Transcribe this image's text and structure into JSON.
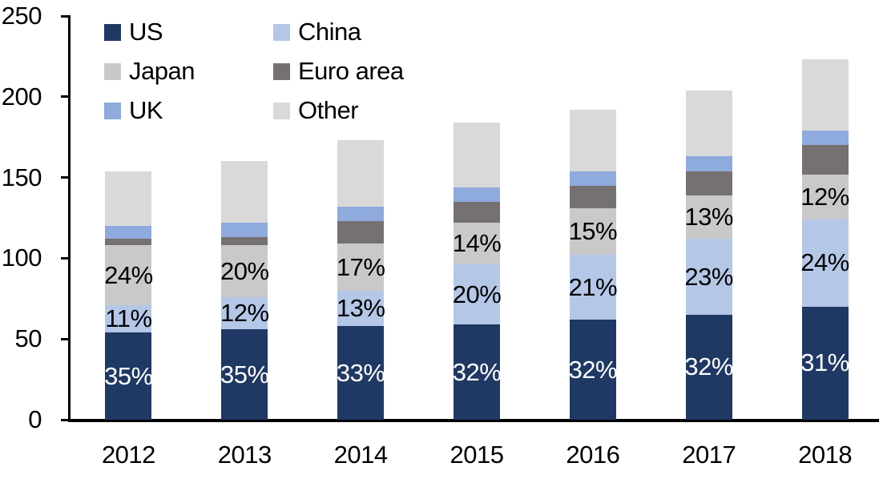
{
  "chart_data": {
    "type": "bar",
    "stacked": true,
    "grid": false,
    "legend_position": "top-left",
    "categories": [
      "2012",
      "2013",
      "2014",
      "2015",
      "2016",
      "2017",
      "2018"
    ],
    "yticks": [
      0,
      50,
      100,
      150,
      200,
      250
    ],
    "ylim": [
      0,
      250
    ],
    "totals": [
      154,
      160,
      173,
      184,
      192,
      204,
      223
    ],
    "series": [
      {
        "name": "US",
        "color": "#1F3864",
        "values": [
          54,
          56,
          58,
          59,
          62,
          65,
          70
        ],
        "labels": [
          "35%",
          "35%",
          "33%",
          "32%",
          "32%",
          "32%",
          "31%"
        ],
        "label_color": "#FFFFFF"
      },
      {
        "name": "China",
        "color": "#B4C7E7",
        "values": [
          17,
          20,
          22,
          37,
          40,
          47,
          54
        ],
        "labels": [
          "11%",
          "12%",
          "13%",
          "20%",
          "21%",
          "23%",
          "24%"
        ],
        "label_color": "#000000"
      },
      {
        "name": "Japan",
        "color": "#C9C9C9",
        "values": [
          37,
          32,
          29,
          26,
          29,
          27,
          28
        ],
        "labels": [
          "24%",
          "20%",
          "17%",
          "14%",
          "15%",
          "13%",
          "12%"
        ],
        "label_color": "#000000"
      },
      {
        "name": "Euro area",
        "color": "#767171",
        "values": [
          4,
          5,
          14,
          13,
          14,
          15,
          18
        ],
        "labels": [
          "",
          "",
          "",
          "",
          "",
          "",
          ""
        ],
        "label_color": "#000000"
      },
      {
        "name": "UK",
        "color": "#8FAADC",
        "values": [
          8,
          9,
          9,
          9,
          9,
          9,
          9
        ],
        "labels": [
          "",
          "",
          "",
          "",
          "",
          "",
          ""
        ],
        "label_color": "#000000"
      },
      {
        "name": "Other",
        "color": "#D9D9D9",
        "values": [
          34,
          38,
          41,
          40,
          38,
          41,
          44
        ],
        "labels": [
          "",
          "",
          "",
          "",
          "",
          "",
          ""
        ],
        "label_color": "#000000"
      }
    ]
  },
  "legend": {
    "items": [
      {
        "label": "US"
      },
      {
        "label": "China"
      },
      {
        "label": "Japan"
      },
      {
        "label": "Euro area"
      },
      {
        "label": "UK"
      },
      {
        "label": "Other"
      }
    ]
  },
  "axis_colors": {
    "line": "#000000",
    "text": "#000000"
  }
}
